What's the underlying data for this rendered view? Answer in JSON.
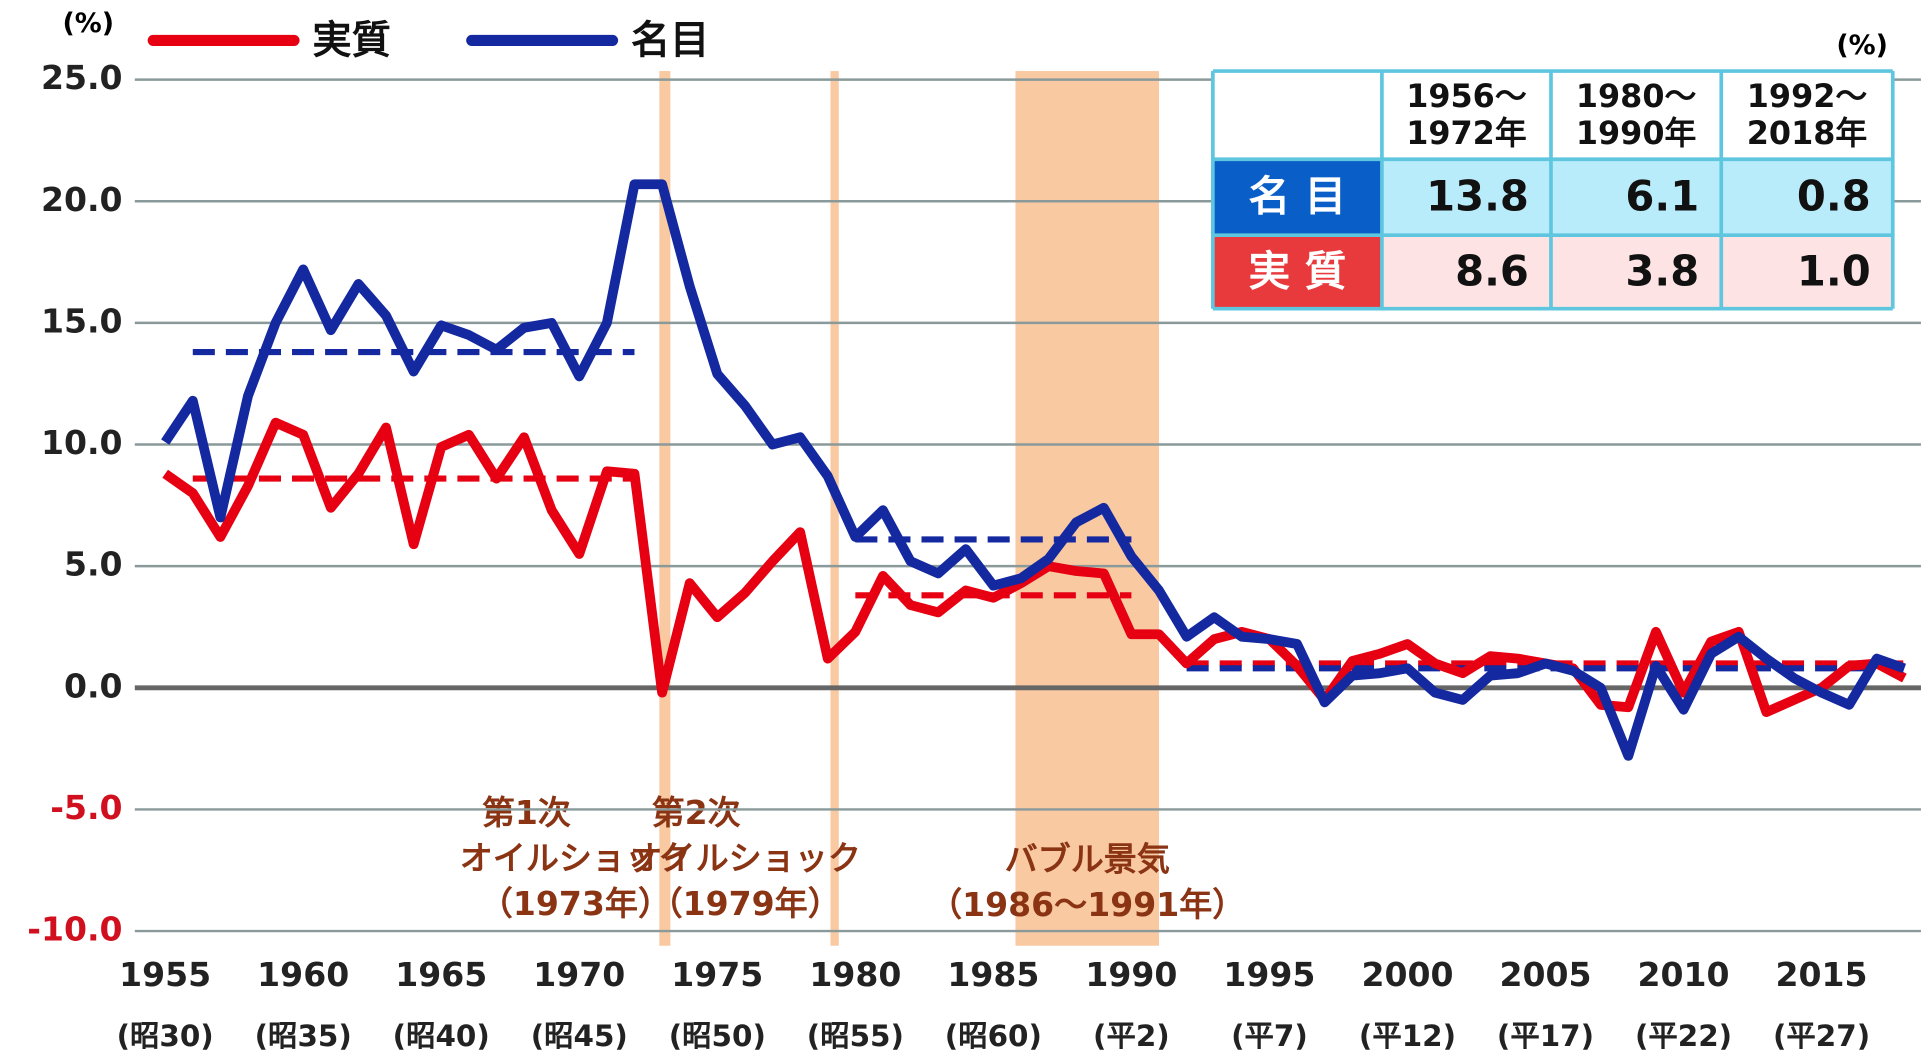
{
  "chart_data": {
    "type": "line",
    "y_unit": "(%)",
    "x": [
      1955,
      1956,
      1957,
      1958,
      1959,
      1960,
      1961,
      1962,
      1963,
      1964,
      1965,
      1966,
      1967,
      1968,
      1969,
      1970,
      1971,
      1972,
      1973,
      1974,
      1975,
      1976,
      1977,
      1978,
      1979,
      1980,
      1981,
      1982,
      1983,
      1984,
      1985,
      1986,
      1987,
      1988,
      1989,
      1990,
      1991,
      1992,
      1993,
      1994,
      1995,
      1996,
      1997,
      1998,
      1999,
      2000,
      2001,
      2002,
      2003,
      2004,
      2005,
      2006,
      2007,
      2008,
      2009,
      2010,
      2011,
      2012,
      2013,
      2014,
      2015,
      2016,
      2017,
      2018
    ],
    "series": [
      {
        "name": "実質",
        "color": "#e60012",
        "values": [
          8.8,
          8.0,
          6.2,
          8.3,
          10.9,
          10.4,
          7.4,
          8.8,
          10.7,
          5.9,
          9.9,
          10.4,
          8.6,
          10.3,
          7.3,
          5.5,
          8.9,
          8.8,
          -0.2,
          4.3,
          2.9,
          3.9,
          5.2,
          6.4,
          1.2,
          2.3,
          4.6,
          3.4,
          3.1,
          4.0,
          3.7,
          4.3,
          5.0,
          4.8,
          4.7,
          2.2,
          2.2,
          1.0,
          2.0,
          2.3,
          2.0,
          0.9,
          -0.5,
          1.1,
          1.4,
          1.8,
          1.0,
          0.6,
          1.3,
          1.2,
          1.0,
          0.8,
          -0.7,
          -0.8,
          2.3,
          -0.2,
          1.9,
          2.3,
          -1.0,
          -0.5,
          0.0,
          0.9,
          1.0,
          0.4
        ],
        "averages": [
          8.6,
          3.8,
          1.0
        ],
        "average_labels": [
          "8.6",
          "3.8",
          "1.0"
        ]
      },
      {
        "name": "名目",
        "color": "#1428a0",
        "values": [
          10.1,
          11.8,
          7.0,
          12.0,
          15.0,
          17.2,
          14.7,
          16.6,
          15.3,
          13.0,
          14.9,
          14.5,
          13.9,
          14.8,
          15.0,
          12.8,
          15.0,
          20.7,
          20.7,
          16.5,
          12.9,
          11.6,
          10.0,
          10.3,
          8.7,
          6.2,
          7.3,
          5.2,
          4.7,
          5.7,
          4.2,
          4.5,
          5.3,
          6.8,
          7.4,
          5.4,
          4.0,
          2.1,
          2.9,
          2.1,
          2.0,
          1.8,
          -0.6,
          0.5,
          0.6,
          0.8,
          -0.2,
          -0.5,
          0.5,
          0.6,
          1.0,
          0.7,
          0.0,
          -2.8,
          0.9,
          -0.9,
          1.4,
          2.1,
          1.2,
          0.4,
          -0.2,
          -0.7,
          1.2,
          0.8
        ],
        "averages": [
          13.8,
          6.1,
          0.8
        ],
        "average_labels": [
          "13.8",
          "6.1",
          "0.8"
        ]
      }
    ],
    "periods": [
      {
        "start": 1956,
        "end": 1972,
        "label_top": "1956〜",
        "label_bottom": "1972年"
      },
      {
        "start": 1980,
        "end": 1990,
        "label_top": "1980〜",
        "label_bottom": "1990年"
      },
      {
        "start": 1992,
        "end": 2018,
        "label_top": "1992〜",
        "label_bottom": "2018年"
      }
    ],
    "table_unit": "(%)",
    "table_row_names": [
      "名 目",
      "実 質"
    ],
    "xlim": [
      1953.9,
      2018.6
    ],
    "xticks": [
      1955,
      1960,
      1965,
      1970,
      1975,
      1980,
      1985,
      1990,
      1995,
      2000,
      2005,
      2010,
      2015
    ],
    "xtick_sublabels": [
      "(昭30)",
      "(昭35)",
      "(昭40)",
      "(昭45)",
      "(昭50)",
      "(昭55)",
      "(昭60)",
      "(平2)",
      "(平7)",
      "(平12)",
      "(平17)",
      "(平22)",
      "(平27)"
    ],
    "ylim": [
      -10,
      25
    ],
    "yticks": [
      {
        "value": 25,
        "label": "25.0"
      },
      {
        "value": 20,
        "label": "20.0"
      },
      {
        "value": 15,
        "label": "15.0"
      },
      {
        "value": 10,
        "label": "10.0"
      },
      {
        "value": 5,
        "label": "5.0"
      },
      {
        "value": 0,
        "label": "0.0"
      },
      {
        "value": -5,
        "label": "-5.0"
      },
      {
        "value": -10,
        "label": "-10.0"
      }
    ],
    "grid": true,
    "shaded": [
      {
        "start": 1972.9,
        "end": 1973.3,
        "lines": [
          "第1次",
          "オイルショック",
          "（1973年）"
        ]
      },
      {
        "start": 1979.1,
        "end": 1979.4,
        "lines": [
          "第2次",
          "オイルショック",
          "（1979年）"
        ]
      },
      {
        "start": 1985.8,
        "end": 1991.0,
        "lines": [
          "バブル景気",
          "（1986〜1991年）"
        ]
      }
    ]
  }
}
